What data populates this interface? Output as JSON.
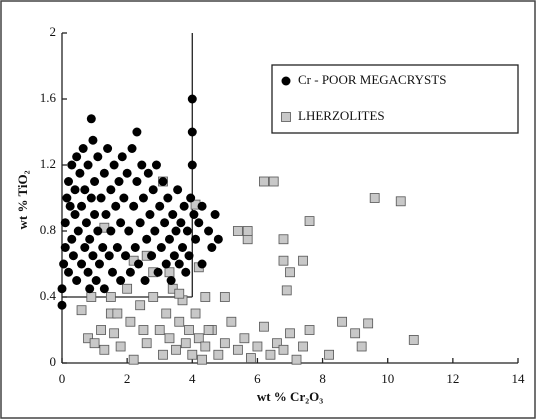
{
  "chart_data": {
    "type": "scatter",
    "x_label": "wt % Cr₂O₃",
    "y_label": "wt % TiO₂",
    "xlim": [
      0,
      14
    ],
    "ylim": [
      0,
      2
    ],
    "xticks": [
      0,
      2,
      4,
      6,
      8,
      10,
      12,
      14
    ],
    "yticks": [
      0,
      0.4,
      0.8,
      1.2,
      1.6,
      2
    ],
    "legend": "upper right",
    "field_box": {
      "x": [
        0,
        4
      ],
      "y": [
        0.4,
        2
      ]
    },
    "series": [
      {
        "name": "Cr - POOR MEGACRYSTS",
        "color": "#000000",
        "marker": "circle",
        "x": [
          0.0,
          0.0,
          0.05,
          0.1,
          0.1,
          0.15,
          0.2,
          0.2,
          0.25,
          0.3,
          0.3,
          0.35,
          0.4,
          0.4,
          0.45,
          0.45,
          0.5,
          0.55,
          0.6,
          0.6,
          0.65,
          0.7,
          0.7,
          0.75,
          0.8,
          0.8,
          0.85,
          0.85,
          0.9,
          0.95,
          0.95,
          1.0,
          1.0,
          1.05,
          1.1,
          1.1,
          1.15,
          1.2,
          1.25,
          1.3,
          1.3,
          1.35,
          1.4,
          1.45,
          1.5,
          1.5,
          1.55,
          1.6,
          1.65,
          1.7,
          1.75,
          1.8,
          1.8,
          1.85,
          1.9,
          1.95,
          2.0,
          2.05,
          2.1,
          2.15,
          2.2,
          2.25,
          2.3,
          2.35,
          2.4,
          2.45,
          2.5,
          2.55,
          2.6,
          2.65,
          2.7,
          2.75,
          2.8,
          2.85,
          2.9,
          2.95,
          3.0,
          3.05,
          3.1,
          3.15,
          3.2,
          3.25,
          3.3,
          3.35,
          3.4,
          3.45,
          3.5,
          3.55,
          3.6,
          3.65,
          3.7,
          3.75,
          3.8,
          3.85,
          3.9,
          3.95,
          4.0,
          4.0,
          4.0,
          4.05,
          4.1,
          4.2,
          4.3,
          4.5,
          4.6,
          4.7,
          4.8,
          4.3,
          0.9,
          2.3
        ],
        "values": [
          0.35,
          0.45,
          0.6,
          0.7,
          0.85,
          1.0,
          1.1,
          0.55,
          0.95,
          0.75,
          1.2,
          0.65,
          0.9,
          1.05,
          0.5,
          1.25,
          0.8,
          1.15,
          0.6,
          0.95,
          1.3,
          0.7,
          1.05,
          0.85,
          0.55,
          1.2,
          0.45,
          0.75,
          1.0,
          0.65,
          1.35,
          0.9,
          1.1,
          0.5,
          0.8,
          1.25,
          0.6,
          1.0,
          0.7,
          1.15,
          0.45,
          0.9,
          1.3,
          0.65,
          1.05,
          0.8,
          0.55,
          1.2,
          0.95,
          0.7,
          1.1,
          0.5,
          0.85,
          1.25,
          1.0,
          0.65,
          1.15,
          0.8,
          0.55,
          1.3,
          0.95,
          0.7,
          1.1,
          0.6,
          0.85,
          1.2,
          1.0,
          0.5,
          0.75,
          1.15,
          0.9,
          0.65,
          1.05,
          0.8,
          1.2,
          0.55,
          0.95,
          0.7,
          1.1,
          0.85,
          0.6,
          1.0,
          0.75,
          0.5,
          0.9,
          0.65,
          0.8,
          1.05,
          0.6,
          0.85,
          0.7,
          0.95,
          0.55,
          0.8,
          0.65,
          1.0,
          1.6,
          1.4,
          1.2,
          0.9,
          0.75,
          0.85,
          0.95,
          0.8,
          0.7,
          0.9,
          0.75,
          0.6,
          1.48,
          1.4
        ]
      },
      {
        "name": "LHERZOLITES",
        "color": "#c8c8c8",
        "marker": "square",
        "x": [
          0.8,
          1.0,
          1.2,
          1.3,
          1.5,
          1.6,
          1.8,
          2.1,
          2.2,
          2.4,
          2.6,
          2.8,
          3.0,
          3.1,
          3.2,
          3.3,
          3.4,
          3.5,
          3.6,
          3.7,
          3.8,
          3.9,
          4.0,
          4.1,
          4.2,
          4.3,
          4.4,
          4.6,
          4.8,
          5.0,
          5.2,
          5.4,
          5.6,
          5.8,
          6.0,
          6.2,
          6.4,
          6.6,
          6.8,
          7.0,
          7.2,
          7.4,
          7.6,
          8.2,
          8.6,
          9.0,
          9.2,
          9.4,
          10.8,
          5.4,
          5.7,
          6.2,
          6.5,
          6.8,
          7.0,
          7.4,
          6.8,
          7.6,
          6.9,
          9.6,
          10.4,
          5.0,
          4.2,
          4.4,
          3.1,
          2.8,
          2.6,
          1.5,
          0.9,
          0.6,
          2.2,
          1.3,
          3.6,
          4.1,
          4.5,
          5.7,
          2.0,
          1.7,
          2.5,
          3.3
        ],
        "values": [
          0.15,
          0.12,
          0.2,
          0.08,
          0.3,
          0.18,
          0.1,
          0.25,
          0.02,
          0.35,
          0.12,
          0.4,
          0.2,
          0.05,
          0.3,
          0.15,
          0.45,
          0.08,
          0.25,
          0.38,
          0.12,
          0.2,
          0.05,
          0.3,
          0.15,
          0.02,
          0.1,
          0.2,
          0.05,
          0.12,
          0.25,
          0.08,
          0.15,
          0.03,
          0.1,
          0.22,
          0.05,
          0.12,
          0.08,
          0.18,
          0.02,
          0.1,
          0.2,
          0.05,
          0.25,
          0.18,
          0.1,
          0.24,
          0.14,
          0.8,
          0.75,
          1.1,
          1.1,
          0.75,
          0.55,
          0.62,
          0.62,
          0.86,
          0.44,
          1.0,
          0.98,
          0.4,
          0.58,
          0.4,
          1.1,
          0.55,
          0.65,
          0.4,
          0.4,
          0.32,
          0.62,
          0.82,
          0.42,
          0.96,
          0.2,
          0.8,
          0.45,
          0.3,
          0.2,
          0.55
        ]
      }
    ]
  }
}
